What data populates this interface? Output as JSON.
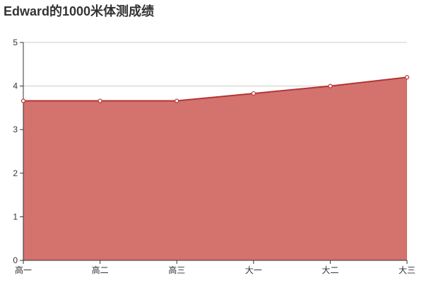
{
  "chart_data": {
    "type": "area",
    "title": "Edward的1000米体测成绩",
    "xlabel": "",
    "ylabel": "",
    "categories": [
      "高一",
      "高二",
      "高三",
      "大一",
      "大二",
      "大三"
    ],
    "series": [
      {
        "values": [
          3.66,
          3.66,
          3.66,
          3.83,
          4.0,
          4.2
        ]
      }
    ],
    "ylim": [
      0,
      5
    ],
    "yticks": [
      0,
      1,
      2,
      3,
      4,
      5
    ],
    "grid": true,
    "legend": "none",
    "colors": {
      "line": "#b33535",
      "fill": "#d4726e",
      "grid": "#cccccc",
      "axis": "#333333",
      "point_fill": "#ffffff"
    }
  }
}
